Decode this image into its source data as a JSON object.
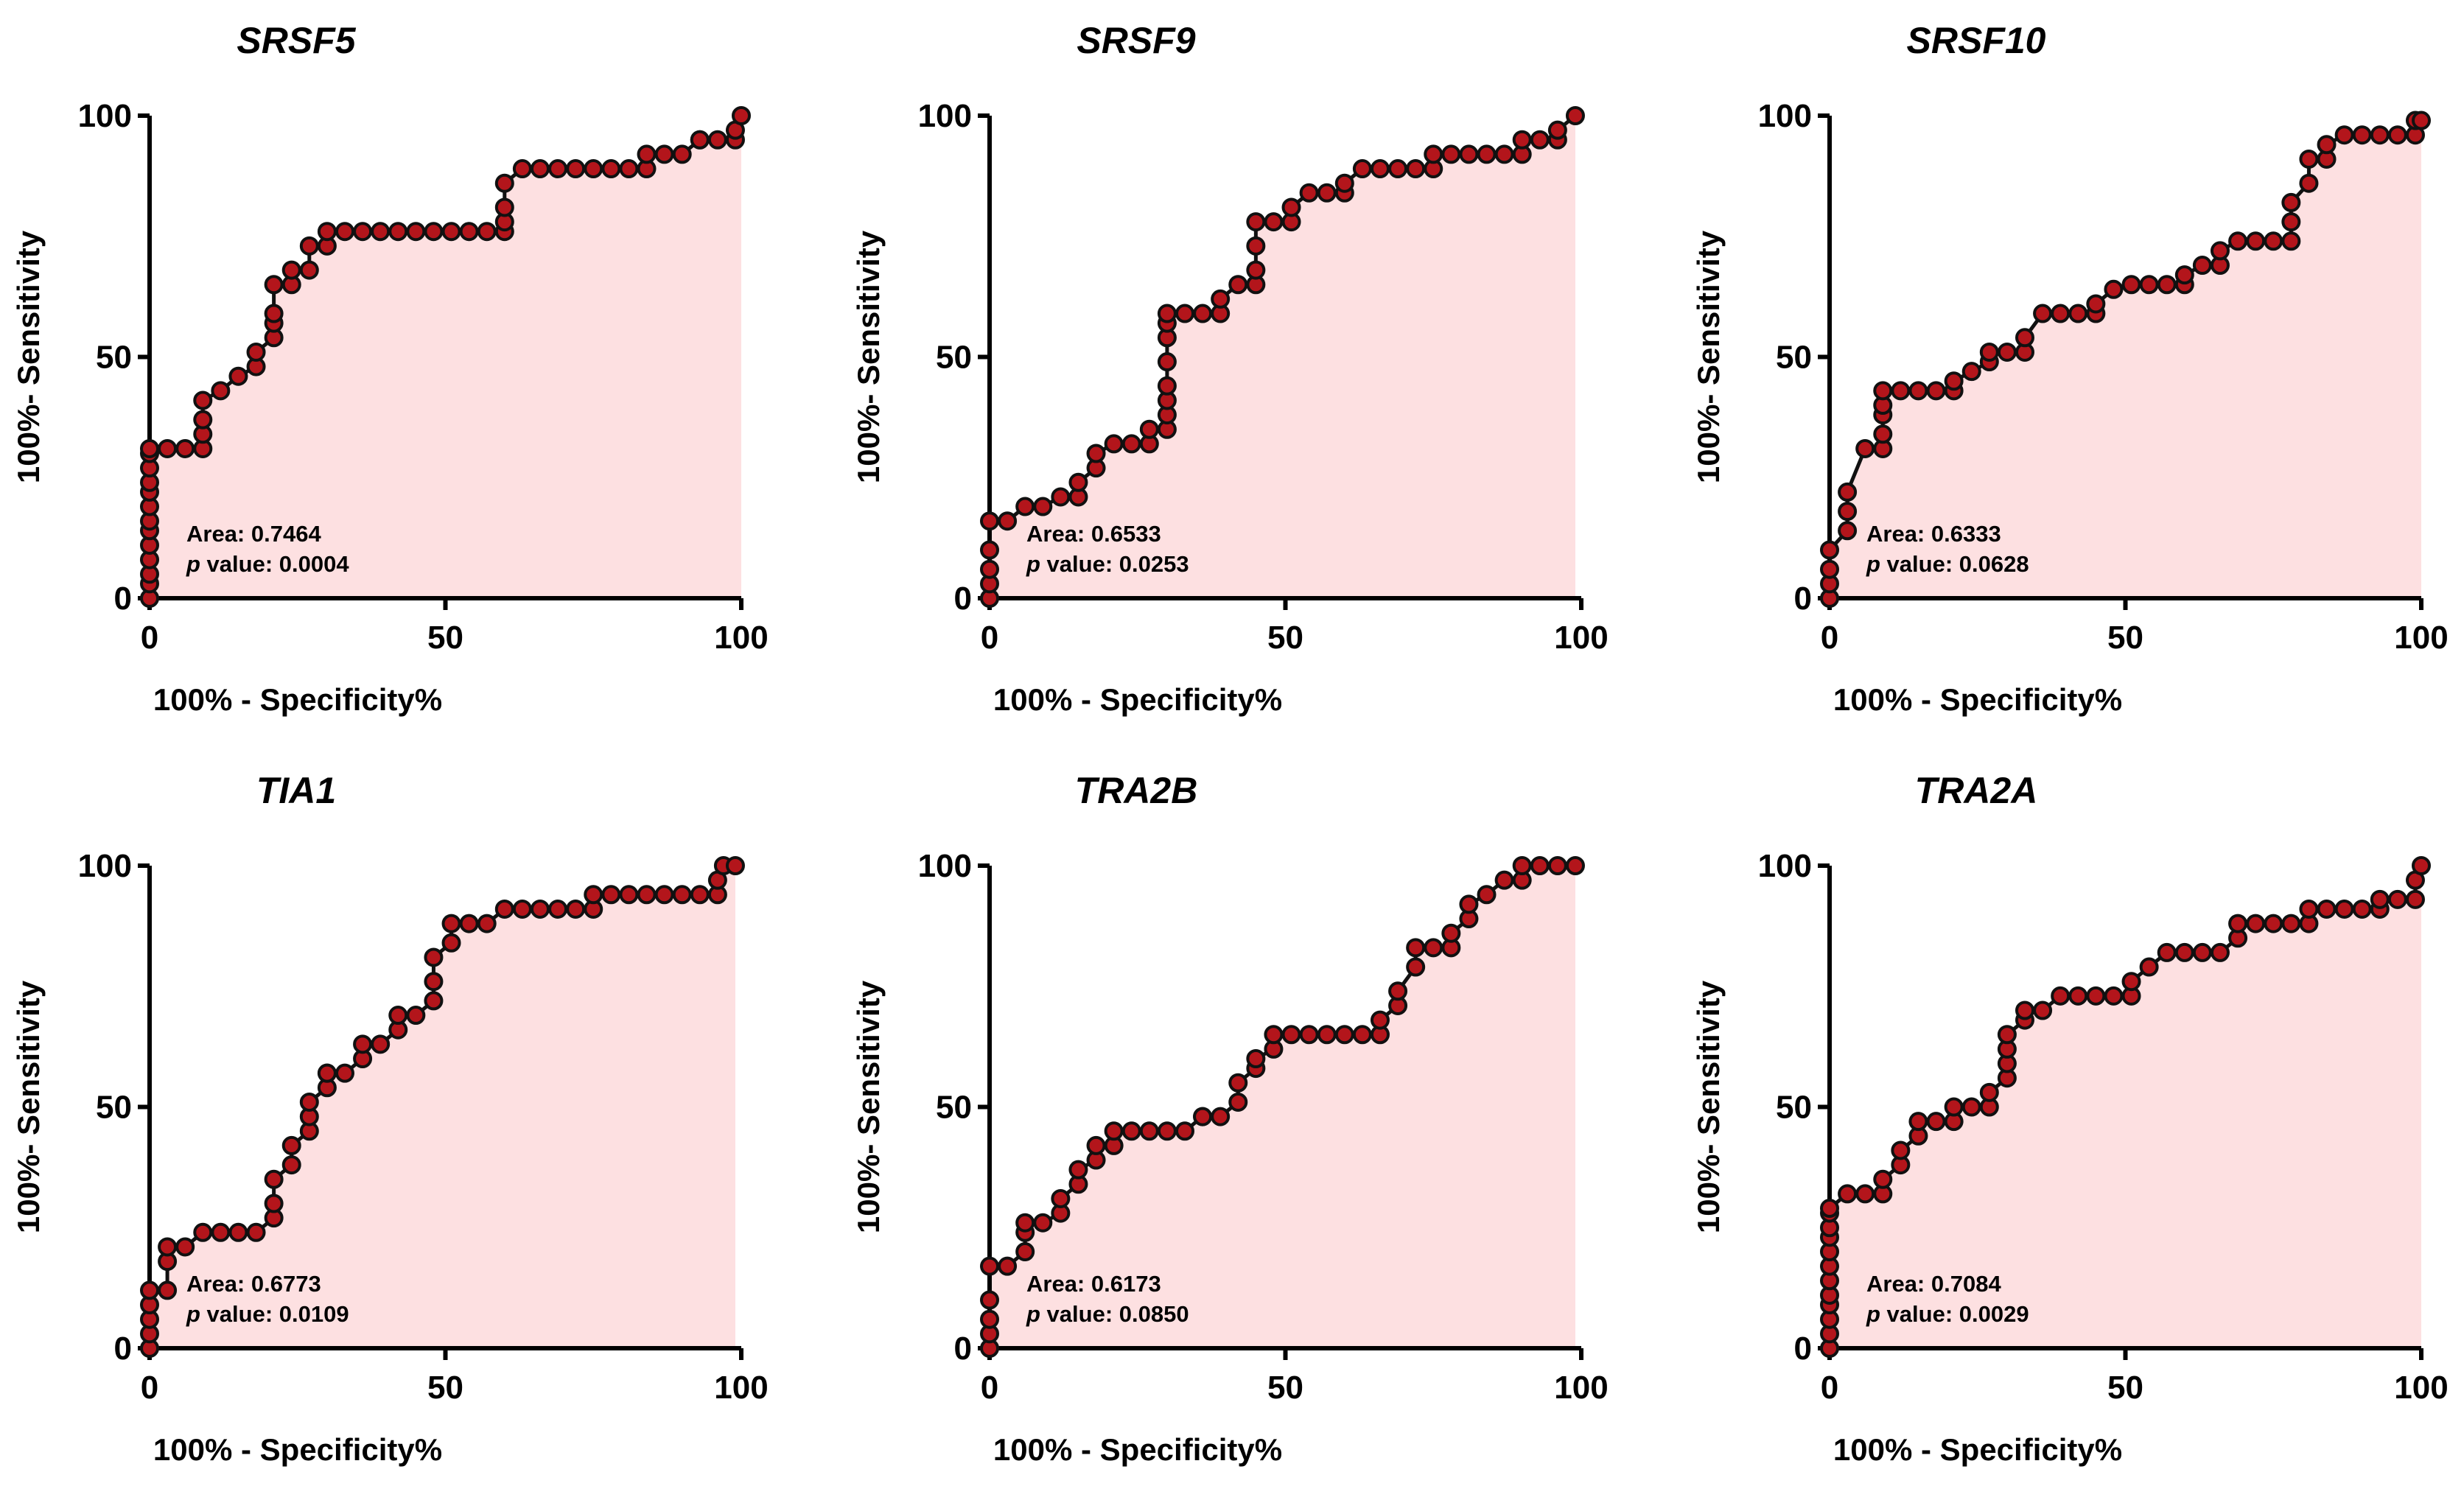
{
  "colors": {
    "fill_area": "#fde0e1",
    "point_fill": "#b3151b",
    "point_edge": "#111111",
    "axes": "#000000"
  },
  "chart_data": [
    {
      "type": "line",
      "title": "SRSF5",
      "xlabel": "100% - Specificity%",
      "ylabel": "100%- Sensitivity",
      "xlim": [
        0,
        100
      ],
      "ylim": [
        0,
        100
      ],
      "xticks": [
        "0",
        "50",
        "100"
      ],
      "yticks": [
        "0",
        "50",
        "100"
      ],
      "area_text": "Area: 0.7464",
      "p_label": "p",
      "p_text": " value: 0.0004",
      "x": [
        0,
        0,
        0,
        0,
        0,
        0,
        0,
        0,
        0,
        0,
        0,
        0,
        0,
        3,
        6,
        9,
        9,
        9,
        9,
        12,
        15,
        18,
        18,
        21,
        21,
        21,
        21,
        24,
        24,
        27,
        27,
        30,
        30,
        33,
        36,
        39,
        42,
        45,
        48,
        51,
        54,
        57,
        60,
        60,
        60,
        60,
        63,
        66,
        69,
        72,
        75,
        78,
        81,
        84,
        84,
        87,
        90,
        93,
        93,
        96,
        99,
        99,
        100
      ],
      "y": [
        0,
        3,
        5,
        8,
        11,
        14,
        16,
        19,
        22,
        24,
        27,
        30,
        31,
        31,
        31,
        31,
        34,
        37,
        41,
        43,
        46,
        48,
        51,
        54,
        57,
        59,
        65,
        65,
        68,
        68,
        73,
        73,
        76,
        76,
        76,
        76,
        76,
        76,
        76,
        76,
        76,
        76,
        76,
        78,
        81,
        86,
        89,
        89,
        89,
        89,
        89,
        89,
        89,
        89,
        92,
        92,
        92,
        95,
        95,
        95,
        95,
        97,
        100
      ]
    },
    {
      "type": "line",
      "title": "SRSF9",
      "xlabel": "100% - Specificity%",
      "ylabel": "100%- Sensitivity",
      "xlim": [
        0,
        100
      ],
      "ylim": [
        0,
        100
      ],
      "xticks": [
        "0",
        "50",
        "100"
      ],
      "yticks": [
        "0",
        "50",
        "100"
      ],
      "area_text": "Area: 0.6533",
      "p_label": "p",
      "p_text": " value: 0.0253",
      "x": [
        0,
        0,
        0,
        0,
        0,
        3,
        6,
        9,
        12,
        15,
        15,
        18,
        18,
        21,
        24,
        27,
        27,
        30,
        30,
        30,
        30,
        30,
        30,
        30,
        30,
        33,
        36,
        39,
        39,
        42,
        45,
        45,
        45,
        45,
        48,
        51,
        51,
        54,
        57,
        60,
        60,
        63,
        66,
        69,
        72,
        75,
        75,
        78,
        81,
        84,
        87,
        90,
        90,
        93,
        96,
        96,
        99
      ],
      "y": [
        0,
        3,
        6,
        10,
        16,
        16,
        19,
        19,
        21,
        21,
        24,
        27,
        30,
        32,
        32,
        32,
        35,
        35,
        38,
        41,
        44,
        49,
        54,
        57,
        59,
        59,
        59,
        59,
        62,
        65,
        65,
        68,
        73,
        78,
        78,
        78,
        81,
        84,
        84,
        84,
        86,
        89,
        89,
        89,
        89,
        89,
        92,
        92,
        92,
        92,
        92,
        92,
        95,
        95,
        95,
        97,
        100
      ]
    },
    {
      "type": "line",
      "title": "SRSF10",
      "xlabel": "100% - Specificity%",
      "ylabel": "100%- Sensitivity",
      "xlim": [
        0,
        100
      ],
      "ylim": [
        0,
        100
      ],
      "xticks": [
        "0",
        "50",
        "100"
      ],
      "yticks": [
        "0",
        "50",
        "100"
      ],
      "area_text": "Area: 0.6333",
      "p_label": "p",
      "p_text": " value: 0.0628",
      "x": [
        0,
        0,
        0,
        0,
        3,
        3,
        3,
        6,
        9,
        9,
        9,
        9,
        9,
        12,
        15,
        18,
        21,
        21,
        24,
        27,
        27,
        30,
        33,
        33,
        36,
        39,
        42,
        45,
        45,
        48,
        51,
        54,
        57,
        60,
        60,
        63,
        66,
        66,
        69,
        72,
        75,
        78,
        78,
        78,
        81,
        81,
        84,
        84,
        87,
        90,
        93,
        96,
        99,
        99
      ],
      "y": [
        0,
        3,
        6,
        10,
        14,
        18,
        22,
        31,
        31,
        34,
        38,
        40,
        43,
        43,
        43,
        43,
        43,
        45,
        47,
        49,
        51,
        51,
        51,
        54,
        59,
        59,
        59,
        59,
        61,
        64,
        65,
        65,
        65,
        65,
        67,
        69,
        69,
        72,
        74,
        74,
        74,
        74,
        78,
        82,
        86,
        91,
        91,
        94,
        96,
        96,
        96,
        96,
        96,
        99
      ],
      "x_extra": [
        100
      ],
      "y_extra": [
        99
      ]
    },
    {
      "type": "line",
      "title": "TIA1",
      "xlabel": "100% - Specificity%",
      "ylabel": "100%- Sensitivity",
      "xlim": [
        0,
        100
      ],
      "ylim": [
        0,
        100
      ],
      "xticks": [
        "0",
        "50",
        "100"
      ],
      "yticks": [
        "0",
        "50",
        "100"
      ],
      "area_text": "Area: 0.6773",
      "p_label": "p",
      "p_text": " value: 0.0109",
      "x": [
        0,
        0,
        0,
        0,
        0,
        3,
        3,
        3,
        6,
        9,
        12,
        15,
        18,
        21,
        21,
        21,
        24,
        24,
        27,
        27,
        27,
        30,
        30,
        30,
        33,
        36,
        36,
        39,
        42,
        42,
        45,
        48,
        48,
        48,
        51,
        51,
        54,
        57,
        60,
        63,
        66,
        69,
        72,
        75,
        75,
        78,
        81,
        84,
        87,
        90,
        93,
        96,
        96,
        97,
        99
      ],
      "y": [
        0,
        3,
        6,
        9,
        12,
        12,
        18,
        21,
        21,
        24,
        24,
        24,
        24,
        27,
        30,
        35,
        38,
        42,
        45,
        48,
        51,
        54,
        57,
        57,
        57,
        60,
        63,
        63,
        66,
        69,
        69,
        72,
        76,
        81,
        84,
        88,
        88,
        88,
        91,
        91,
        91,
        91,
        91,
        91,
        94,
        94,
        94,
        94,
        94,
        94,
        94,
        94,
        97,
        100,
        100
      ]
    },
    {
      "type": "line",
      "title": "TRA2B",
      "xlabel": "100% - Specificity%",
      "ylabel": "100%- Sensitivity",
      "xlim": [
        0,
        100
      ],
      "ylim": [
        0,
        100
      ],
      "xticks": [
        "0",
        "50",
        "100"
      ],
      "yticks": [
        "0",
        "50",
        "100"
      ],
      "area_text": "Area: 0.6173",
      "p_label": "p",
      "p_text": " value: 0.0850",
      "x": [
        0,
        0,
        0,
        0,
        0,
        3,
        6,
        6,
        6,
        9,
        12,
        12,
        15,
        15,
        18,
        18,
        21,
        21,
        24,
        27,
        30,
        33,
        36,
        36,
        39,
        42,
        42,
        45,
        45,
        48,
        48,
        51,
        54,
        57,
        60,
        63,
        66,
        66,
        69,
        69,
        72,
        72,
        75,
        78,
        78,
        81,
        81,
        84,
        87,
        90,
        90,
        93,
        96,
        99
      ],
      "y": [
        0,
        3,
        6,
        10,
        17,
        17,
        20,
        24,
        26,
        26,
        28,
        31,
        34,
        37,
        39,
        42,
        42,
        45,
        45,
        45,
        45,
        45,
        48,
        48,
        48,
        51,
        55,
        58,
        60,
        62,
        65,
        65,
        65,
        65,
        65,
        65,
        65,
        68,
        71,
        74,
        79,
        83,
        83,
        83,
        86,
        89,
        92,
        94,
        97,
        97,
        100,
        100,
        100,
        100
      ]
    },
    {
      "type": "line",
      "title": "TRA2A",
      "xlabel": "100% - Specificity%",
      "ylabel": "100%- Sensitivity",
      "xlim": [
        0,
        100
      ],
      "ylim": [
        0,
        100
      ],
      "xticks": [
        "0",
        "50",
        "100"
      ],
      "yticks": [
        "0",
        "50",
        "100"
      ],
      "area_text": "Area: 0.7084",
      "p_label": "p",
      "p_text": " value: 0.0029",
      "x": [
        0,
        0,
        0,
        0,
        0,
        0,
        0,
        0,
        0,
        0,
        0,
        0,
        3,
        6,
        9,
        9,
        12,
        12,
        15,
        15,
        18,
        21,
        21,
        24,
        27,
        27,
        30,
        30,
        30,
        30,
        33,
        33,
        36,
        39,
        42,
        45,
        48,
        51,
        51,
        54,
        57,
        60,
        63,
        66,
        69,
        69,
        72,
        75,
        78,
        81,
        81,
        84,
        87,
        90,
        93,
        93,
        96,
        99,
        99,
        100
      ],
      "y": [
        0,
        3,
        6,
        9,
        11,
        14,
        17,
        20,
        23,
        25,
        28,
        29,
        32,
        32,
        32,
        35,
        38,
        41,
        44,
        47,
        47,
        47,
        50,
        50,
        50,
        53,
        56,
        59,
        62,
        65,
        68,
        70,
        70,
        73,
        73,
        73,
        73,
        73,
        76,
        79,
        82,
        82,
        82,
        82,
        85,
        88,
        88,
        88,
        88,
        88,
        91,
        91,
        91,
        91,
        91,
        93,
        93,
        93,
        97,
        100
      ]
    }
  ]
}
